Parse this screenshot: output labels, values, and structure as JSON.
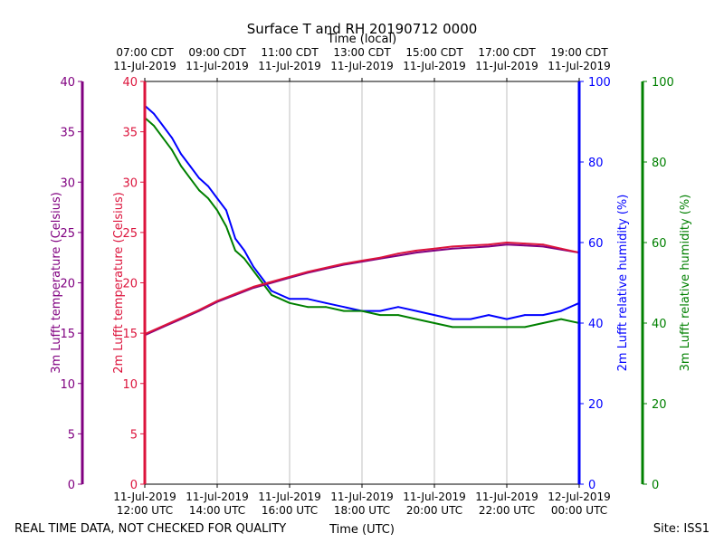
{
  "chart_data": {
    "type": "line",
    "title": "Surface T and RH 20190712 0000",
    "top_axis_title": "Time (local)",
    "xlabel": "Time (UTC)",
    "footer_left": "REAL TIME DATA, NOT CHECKED FOR QUALITY",
    "footer_right": "Site: ISS1",
    "x_hours_range": [
      12,
      24
    ],
    "bottom_ticks": [
      {
        "hour": 12,
        "line1": "11-Jul-2019",
        "line2": "12:00 UTC"
      },
      {
        "hour": 14,
        "line1": "11-Jul-2019",
        "line2": "14:00 UTC"
      },
      {
        "hour": 16,
        "line1": "11-Jul-2019",
        "line2": "16:00 UTC"
      },
      {
        "hour": 18,
        "line1": "11-Jul-2019",
        "line2": "18:00 UTC"
      },
      {
        "hour": 20,
        "line1": "11-Jul-2019",
        "line2": "20:00 UTC"
      },
      {
        "hour": 22,
        "line1": "11-Jul-2019",
        "line2": "22:00 UTC"
      },
      {
        "hour": 24,
        "line1": "12-Jul-2019",
        "line2": "00:00 UTC"
      }
    ],
    "top_ticks": [
      {
        "hour": 12,
        "line1": "07:00 CDT",
        "line2": "11-Jul-2019"
      },
      {
        "hour": 14,
        "line1": "09:00 CDT",
        "line2": "11-Jul-2019"
      },
      {
        "hour": 16,
        "line1": "11:00 CDT",
        "line2": "11-Jul-2019"
      },
      {
        "hour": 18,
        "line1": "13:00 CDT",
        "line2": "11-Jul-2019"
      },
      {
        "hour": 20,
        "line1": "15:00 CDT",
        "line2": "11-Jul-2019"
      },
      {
        "hour": 22,
        "line1": "17:00 CDT",
        "line2": "11-Jul-2019"
      },
      {
        "hour": 24,
        "line1": "19:00 CDT",
        "line2": "11-Jul-2019"
      }
    ],
    "axes": {
      "temp3m": {
        "label": "3m Lufft temperature (Celsius)",
        "range": [
          0,
          40
        ],
        "ticks": [
          0,
          5,
          10,
          15,
          20,
          25,
          30,
          35,
          40
        ],
        "color": "#800080"
      },
      "temp2m": {
        "label": "2m Lufft temperature (Celsius)",
        "range": [
          0,
          40
        ],
        "ticks": [
          0,
          5,
          10,
          15,
          20,
          25,
          30,
          35,
          40
        ],
        "color": "#dc143c"
      },
      "rh2m": {
        "label": "2m Lufft relative humidity (%)",
        "range": [
          0,
          100
        ],
        "ticks": [
          0,
          20,
          40,
          60,
          80,
          100
        ],
        "color": "#0000ff"
      },
      "rh3m": {
        "label": "3m Lufft relative humidity (%)",
        "range": [
          0,
          100
        ],
        "ticks": [
          0,
          20,
          40,
          60,
          80,
          100
        ],
        "color": "#008000"
      }
    },
    "series": [
      {
        "name": "2m Lufft relative humidity (%)",
        "axis": "rh2m",
        "color": "#0000ff",
        "x": [
          12.0,
          12.25,
          12.5,
          12.75,
          13.0,
          13.25,
          13.5,
          13.75,
          14.0,
          14.25,
          14.5,
          14.75,
          15.0,
          15.25,
          15.5,
          15.75,
          16.0,
          16.5,
          17.0,
          17.5,
          18.0,
          18.5,
          19.0,
          19.5,
          20.0,
          20.5,
          21.0,
          21.5,
          22.0,
          22.5,
          23.0,
          23.5,
          24.0
        ],
        "values": [
          94,
          92,
          89,
          86,
          82,
          79,
          76,
          74,
          71,
          68,
          61,
          58,
          54,
          51,
          48,
          47,
          46,
          46,
          45,
          44,
          43,
          43,
          44,
          43,
          42,
          41,
          41,
          42,
          41,
          42,
          42,
          43,
          45
        ]
      },
      {
        "name": "3m Lufft relative humidity (%)",
        "axis": "rh3m",
        "color": "#008000",
        "x": [
          12.0,
          12.25,
          12.5,
          12.75,
          13.0,
          13.25,
          13.5,
          13.75,
          14.0,
          14.25,
          14.5,
          14.75,
          15.0,
          15.25,
          15.5,
          15.75,
          16.0,
          16.5,
          17.0,
          17.5,
          18.0,
          18.5,
          19.0,
          19.5,
          20.0,
          20.5,
          21.0,
          21.5,
          22.0,
          22.5,
          23.0,
          23.5,
          24.0
        ],
        "values": [
          91,
          89,
          86,
          83,
          79,
          76,
          73,
          71,
          68,
          64,
          58,
          56,
          53,
          50,
          47,
          46,
          45,
          44,
          44,
          43,
          43,
          42,
          42,
          41,
          40,
          39,
          39,
          39,
          39,
          39,
          40,
          41,
          40
        ]
      },
      {
        "name": "3m Lufft temperature (Celsius)",
        "axis": "temp3m",
        "color": "#800080",
        "x": [
          12.0,
          12.5,
          13.0,
          13.5,
          14.0,
          14.5,
          15.0,
          15.5,
          16.0,
          16.5,
          17.0,
          17.5,
          18.0,
          18.5,
          19.0,
          19.5,
          20.0,
          20.5,
          21.0,
          21.5,
          22.0,
          22.5,
          23.0,
          23.5,
          24.0
        ],
        "values": [
          14.8,
          15.6,
          16.4,
          17.2,
          18.1,
          18.8,
          19.5,
          20.0,
          20.5,
          21.0,
          21.4,
          21.8,
          22.1,
          22.4,
          22.7,
          23.0,
          23.2,
          23.4,
          23.5,
          23.6,
          23.8,
          23.7,
          23.6,
          23.3,
          23.0
        ]
      },
      {
        "name": "2m Lufft temperature (Celsius)",
        "axis": "temp2m",
        "color": "#dc143c",
        "x": [
          12.0,
          12.5,
          13.0,
          13.5,
          14.0,
          14.5,
          15.0,
          15.5,
          16.0,
          16.5,
          17.0,
          17.5,
          18.0,
          18.5,
          19.0,
          19.5,
          20.0,
          20.5,
          21.0,
          21.5,
          22.0,
          22.5,
          23.0,
          23.5,
          24.0
        ],
        "values": [
          14.9,
          15.7,
          16.5,
          17.3,
          18.2,
          18.9,
          19.6,
          20.1,
          20.6,
          21.1,
          21.5,
          21.9,
          22.2,
          22.5,
          22.9,
          23.2,
          23.4,
          23.6,
          23.7,
          23.8,
          24.0,
          23.9,
          23.8,
          23.4,
          23.0
        ]
      }
    ]
  }
}
